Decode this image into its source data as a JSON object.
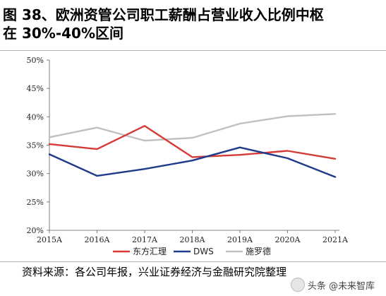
{
  "title": {
    "line1": "图 38、欧洲资管公司职工薪酬占营业收入比例中枢",
    "line2": "在 30%-40%区间"
  },
  "source": "资料来源：各公司年报，兴业证券经济与金融研究院整理",
  "watermark": "头条 @未来智库",
  "chart_data": {
    "type": "line",
    "x": [
      "2015A",
      "2016A",
      "2017A",
      "2018A",
      "2019A",
      "2020A",
      "2021A"
    ],
    "ylim": [
      20,
      50
    ],
    "yticks": [
      20,
      25,
      30,
      35,
      40,
      45,
      50
    ],
    "ytick_labels": [
      "20%",
      "25%",
      "30%",
      "35%",
      "40%",
      "45%",
      "50%"
    ],
    "grid": false,
    "legend_position": "bottom",
    "series": [
      {
        "name": "东方汇理",
        "color": "#d73a35",
        "values": [
          35.2,
          34.3,
          38.4,
          32.9,
          33.3,
          34.0,
          32.6
        ]
      },
      {
        "name": "DWS",
        "color": "#1f3a8a",
        "values": [
          33.4,
          29.6,
          30.8,
          32.3,
          34.6,
          32.7,
          29.4
        ]
      },
      {
        "name": "施罗德",
        "color": "#c0c0c0",
        "values": [
          36.4,
          38.1,
          35.8,
          36.3,
          38.8,
          40.1,
          40.5
        ]
      }
    ]
  }
}
